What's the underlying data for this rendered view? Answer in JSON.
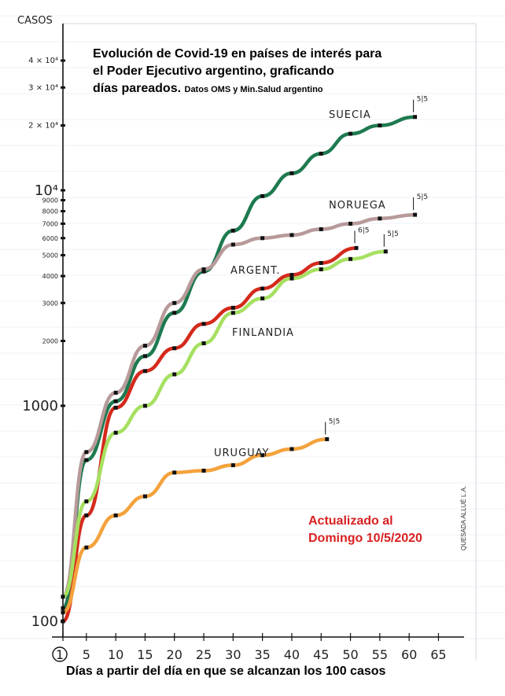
{
  "title": {
    "main": "Evolución de Covid-19 en países de interés para el Poder Ejecutivo argentino, graficando días pareados.",
    "line1": "Evolución de Covid-19 en países de interés para",
    "line2": "el Poder Ejecutivo argentino, graficando",
    "line3": "días pareados.",
    "source": "Datos OMS y Min.Salud argentino"
  },
  "update_note": {
    "line1": "Actualizado al",
    "line2": "Domingo 10/5/2020"
  },
  "signature": "QUESADA ALLUÉ L.A.",
  "chart_data": {
    "type": "line",
    "title": "Evolución de Covid-19 en países de interés para el Poder Ejecutivo argentino, graficando días pareados.",
    "subtitle": "Datos OMS y Min.Salud argentino",
    "xlabel": "Días a partir del día en que se alcanzan  los 100 casos",
    "ylabel": "CASOS",
    "yscale": "log",
    "xlim": [
      1,
      65
    ],
    "ylim": [
      100,
      50000
    ],
    "x_ticks": [
      "1",
      "5",
      "10",
      "15",
      "20",
      "25",
      "30",
      "35",
      "40",
      "45",
      "50",
      "55",
      "60",
      "65"
    ],
    "y_ticks": [
      "100",
      "1000",
      "2000",
      "3000",
      "4000",
      "5000",
      "6000",
      "7000",
      "8000",
      "9000",
      "10⁴",
      "2 × 10⁴",
      "3 × 10⁴",
      "4 × 10⁴"
    ],
    "grid": false,
    "series": [
      {
        "name": "SUECIA",
        "color": "#1e7a50",
        "end_label": "5|5",
        "x": [
          1,
          5,
          10,
          15,
          20,
          25,
          30,
          35,
          40,
          45,
          50,
          55,
          61
        ],
        "y": [
          115,
          560,
          1050,
          1700,
          2700,
          4200,
          6500,
          9400,
          12000,
          14800,
          18300,
          20000,
          21900
        ]
      },
      {
        "name": "NORUEGA",
        "color": "#b89a9a",
        "end_label": "5|5",
        "x": [
          1,
          5,
          10,
          15,
          20,
          25,
          30,
          35,
          40,
          45,
          50,
          55,
          61
        ],
        "y": [
          130,
          610,
          1150,
          1900,
          3000,
          4300,
          5600,
          6000,
          6200,
          6600,
          7000,
          7400,
          7700
        ]
      },
      {
        "name": "ARGENT.",
        "color": "#d42a1c",
        "end_label": "6|5",
        "x": [
          1,
          5,
          10,
          15,
          20,
          25,
          30,
          35,
          40,
          45,
          51
        ],
        "y": [
          100,
          310,
          980,
          1450,
          1850,
          2400,
          2850,
          3500,
          4050,
          4600,
          5400
        ]
      },
      {
        "name": "FINLANDIA",
        "color": "#a6e060",
        "end_label": "5|5",
        "x": [
          1,
          5,
          10,
          15,
          20,
          25,
          30,
          35,
          40,
          45,
          50,
          56
        ],
        "y": [
          130,
          360,
          750,
          1000,
          1400,
          1950,
          2700,
          3150,
          3900,
          4300,
          4800,
          5200
        ]
      },
      {
        "name": "URUGUAY",
        "color": "#f4a23c",
        "end_label": "5|5",
        "x": [
          1,
          5,
          10,
          15,
          20,
          25,
          30,
          35,
          40,
          46
        ],
        "y": [
          110,
          220,
          310,
          380,
          490,
          500,
          530,
          590,
          630,
          700
        ]
      }
    ]
  }
}
